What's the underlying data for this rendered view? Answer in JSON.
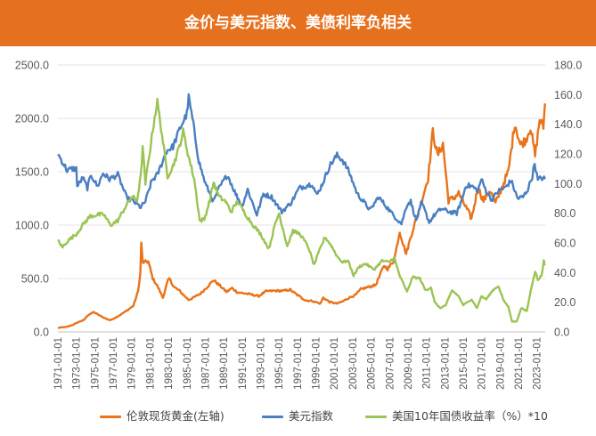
{
  "header": {
    "title": "金价与美元指数、美债利率负相关",
    "background": "#e5701e"
  },
  "chart_data": {
    "type": "line",
    "title": "金价与美元指数、美债利率负相关",
    "x_range": [
      1971.0,
      2023.9
    ],
    "x_tick_labels": [
      "1971-01-01",
      "1973-01-01",
      "1975-01-01",
      "1977-01-01",
      "1979-01-01",
      "1981-01-01",
      "1983-01-01",
      "1985-01-01",
      "1987-01-01",
      "1989-01-01",
      "1991-01-01",
      "1993-01-01",
      "1995-01-01",
      "1997-01-01",
      "1999-01-01",
      "2001-01-01",
      "2003-01-01",
      "2005-01-01",
      "2007-01-01",
      "2009-01-01",
      "2011-01-01",
      "2013-01-01",
      "2015-01-01",
      "2017-01-01",
      "2019-01-01",
      "2021-01-01",
      "2023-01-01"
    ],
    "left_axis": {
      "range": [
        0,
        2500
      ],
      "ticks": [
        0,
        500,
        1000,
        1500,
        2000,
        2500
      ],
      "tick_labels": [
        "0.0",
        "500.0",
        "1000.0",
        "1500.0",
        "2000.0",
        "2500.0"
      ]
    },
    "right_axis": {
      "range": [
        0,
        180
      ],
      "ticks": [
        0,
        20,
        40,
        60,
        80,
        100,
        120,
        140,
        160,
        180
      ],
      "tick_labels": [
        "0.0",
        "20.0",
        "40.0",
        "60.0",
        "80.0",
        "100.0",
        "120.0",
        "140.0",
        "160.0",
        "180.0"
      ]
    },
    "grid": true,
    "legend_position": "bottom",
    "series": [
      {
        "name": "伦敦现货黄金(左轴)",
        "axis": "left",
        "color": "#e8731a",
        "points": [
          [
            1971.0,
            38
          ],
          [
            1972.0,
            48
          ],
          [
            1972.6,
            65
          ],
          [
            1973.3,
            95
          ],
          [
            1973.8,
            110
          ],
          [
            1974.3,
            160
          ],
          [
            1974.9,
            185
          ],
          [
            1975.5,
            155
          ],
          [
            1976.3,
            120
          ],
          [
            1976.7,
            110
          ],
          [
            1977.5,
            145
          ],
          [
            1978.5,
            200
          ],
          [
            1979.2,
            245
          ],
          [
            1979.7,
            380
          ],
          [
            1979.95,
            550
          ],
          [
            1980.05,
            840
          ],
          [
            1980.2,
            650
          ],
          [
            1980.8,
            660
          ],
          [
            1981.3,
            500
          ],
          [
            1981.8,
            430
          ],
          [
            1982.4,
            320
          ],
          [
            1982.9,
            470
          ],
          [
            1983.1,
            500
          ],
          [
            1983.6,
            420
          ],
          [
            1984.2,
            385
          ],
          [
            1984.7,
            340
          ],
          [
            1985.2,
            300
          ],
          [
            1985.8,
            325
          ],
          [
            1986.5,
            360
          ],
          [
            1987.2,
            420
          ],
          [
            1987.9,
            485
          ],
          [
            1988.5,
            440
          ],
          [
            1989.3,
            375
          ],
          [
            1989.9,
            410
          ],
          [
            1990.5,
            370
          ],
          [
            1991.3,
            360
          ],
          [
            1992.0,
            350
          ],
          [
            1992.8,
            335
          ],
          [
            1993.6,
            380
          ],
          [
            1994.5,
            385
          ],
          [
            1995.5,
            385
          ],
          [
            1996.2,
            395
          ],
          [
            1997.0,
            345
          ],
          [
            1997.9,
            295
          ],
          [
            1998.6,
            290
          ],
          [
            1999.5,
            265
          ],
          [
            1999.8,
            320
          ],
          [
            2000.5,
            280
          ],
          [
            2001.3,
            265
          ],
          [
            2001.9,
            285
          ],
          [
            2002.6,
            320
          ],
          [
            2003.3,
            345
          ],
          [
            2003.9,
            400
          ],
          [
            2004.7,
            420
          ],
          [
            2005.5,
            440
          ],
          [
            2006.4,
            620
          ],
          [
            2006.8,
            590
          ],
          [
            2007.5,
            670
          ],
          [
            2008.1,
            940
          ],
          [
            2008.8,
            730
          ],
          [
            2009.5,
            950
          ],
          [
            2010.4,
            1200
          ],
          [
            2011.2,
            1450
          ],
          [
            2011.7,
            1880
          ],
          [
            2012.2,
            1650
          ],
          [
            2012.8,
            1760
          ],
          [
            2013.4,
            1230
          ],
          [
            2013.9,
            1250
          ],
          [
            2014.5,
            1300
          ],
          [
            2015.1,
            1200
          ],
          [
            2015.9,
            1060
          ],
          [
            2016.6,
            1350
          ],
          [
            2017.2,
            1230
          ],
          [
            2017.9,
            1330
          ],
          [
            2018.5,
            1200
          ],
          [
            2019.4,
            1400
          ],
          [
            2019.9,
            1500
          ],
          [
            2020.6,
            1960
          ],
          [
            2021.2,
            1750
          ],
          [
            2021.8,
            1800
          ],
          [
            2022.3,
            1920
          ],
          [
            2022.8,
            1650
          ],
          [
            2023.3,
            1990
          ],
          [
            2023.7,
            1920
          ],
          [
            2023.88,
            2140
          ]
        ]
      },
      {
        "name": "美元指数",
        "axis": "right",
        "color": "#4a7fc1",
        "points": [
          [
            1971.0,
            120
          ],
          [
            1972.0,
            109
          ],
          [
            1972.6,
            110
          ],
          [
            1973.0,
            110
          ],
          [
            1973.1,
            98
          ],
          [
            1973.7,
            104
          ],
          [
            1974.2,
            97
          ],
          [
            1974.6,
            106
          ],
          [
            1975.3,
            98
          ],
          [
            1975.9,
            107
          ],
          [
            1976.6,
            103
          ],
          [
            1977.5,
            106
          ],
          [
            1978.5,
            90
          ],
          [
            1979.2,
            88
          ],
          [
            1980.0,
            84
          ],
          [
            1980.5,
            88
          ],
          [
            1981.2,
            102
          ],
          [
            1981.8,
            106
          ],
          [
            1982.8,
            122
          ],
          [
            1983.5,
            125
          ],
          [
            1984.3,
            138
          ],
          [
            1985.0,
            147
          ],
          [
            1985.2,
            158
          ],
          [
            1985.7,
            140
          ],
          [
            1986.3,
            115
          ],
          [
            1987.0,
            100
          ],
          [
            1987.9,
            88
          ],
          [
            1988.5,
            97
          ],
          [
            1989.4,
            106
          ],
          [
            1990.3,
            93
          ],
          [
            1991.0,
            85
          ],
          [
            1991.6,
            96
          ],
          [
            1992.6,
            79
          ],
          [
            1993.3,
            93
          ],
          [
            1994.2,
            91
          ],
          [
            1995.3,
            81
          ],
          [
            1996.3,
            87
          ],
          [
            1997.2,
            97
          ],
          [
            1998.6,
            100
          ],
          [
            1999.1,
            92
          ],
          [
            1999.8,
            101
          ],
          [
            2000.5,
            112
          ],
          [
            2001.3,
            119
          ],
          [
            2001.9,
            116
          ],
          [
            2002.6,
            108
          ],
          [
            2003.5,
            93
          ],
          [
            2004.3,
            87
          ],
          [
            2004.9,
            82
          ],
          [
            2005.8,
            91
          ],
          [
            2006.6,
            85
          ],
          [
            2007.5,
            78
          ],
          [
            2008.3,
            73
          ],
          [
            2008.9,
            86
          ],
          [
            2009.3,
            88
          ],
          [
            2009.9,
            75
          ],
          [
            2010.5,
            87
          ],
          [
            2011.3,
            74
          ],
          [
            2011.9,
            79
          ],
          [
            2012.6,
            83
          ],
          [
            2013.5,
            81
          ],
          [
            2014.3,
            80
          ],
          [
            2014.9,
            90
          ],
          [
            2015.3,
            99
          ],
          [
            2016.0,
            98
          ],
          [
            2016.6,
            95
          ],
          [
            2016.95,
            103
          ],
          [
            2017.5,
            95
          ],
          [
            2018.1,
            89
          ],
          [
            2018.8,
            95
          ],
          [
            2019.5,
            97
          ],
          [
            2020.2,
            102
          ],
          [
            2020.9,
            90
          ],
          [
            2021.5,
            91
          ],
          [
            2022.0,
            96
          ],
          [
            2022.5,
            105
          ],
          [
            2022.75,
            114
          ],
          [
            2023.1,
            102
          ],
          [
            2023.45,
            104
          ],
          [
            2023.88,
            103
          ]
        ]
      },
      {
        "name": "美国10年国债收益率（%）*10",
        "axis": "right",
        "color": "#9cc355",
        "points": [
          [
            1971.0,
            62
          ],
          [
            1971.5,
            57
          ],
          [
            1972.0,
            61
          ],
          [
            1973.0,
            66
          ],
          [
            1973.8,
            73
          ],
          [
            1974.5,
            78
          ],
          [
            1975.3,
            79
          ],
          [
            1976.0,
            79
          ],
          [
            1976.7,
            72
          ],
          [
            1977.5,
            75
          ],
          [
            1978.3,
            84
          ],
          [
            1979.0,
            91
          ],
          [
            1979.6,
            89
          ],
          [
            1980.0,
            105
          ],
          [
            1980.2,
            125
          ],
          [
            1980.5,
            100
          ],
          [
            1981.0,
            123
          ],
          [
            1981.5,
            145
          ],
          [
            1981.8,
            155
          ],
          [
            1982.3,
            133
          ],
          [
            1982.9,
            105
          ],
          [
            1983.5,
            112
          ],
          [
            1984.1,
            123
          ],
          [
            1984.6,
            135
          ],
          [
            1985.2,
            118
          ],
          [
            1985.8,
            103
          ],
          [
            1986.4,
            75
          ],
          [
            1986.9,
            76
          ],
          [
            1987.5,
            89
          ],
          [
            1987.9,
            101
          ],
          [
            1988.5,
            91
          ],
          [
            1989.2,
            88
          ],
          [
            1989.8,
            81
          ],
          [
            1990.5,
            88
          ],
          [
            1991.3,
            80
          ],
          [
            1992.2,
            72
          ],
          [
            1993.0,
            66
          ],
          [
            1993.9,
            56
          ],
          [
            1994.6,
            73
          ],
          [
            1995.0,
            80
          ],
          [
            1995.9,
            58
          ],
          [
            1996.5,
            68
          ],
          [
            1997.3,
            66
          ],
          [
            1998.2,
            57
          ],
          [
            1998.8,
            45
          ],
          [
            1999.4,
            55
          ],
          [
            2000.0,
            64
          ],
          [
            2000.7,
            58
          ],
          [
            2001.3,
            51
          ],
          [
            2001.9,
            47
          ],
          [
            2002.5,
            48
          ],
          [
            2003.1,
            38
          ],
          [
            2003.7,
            44
          ],
          [
            2004.4,
            46
          ],
          [
            2005.3,
            42
          ],
          [
            2006.2,
            48
          ],
          [
            2006.9,
            47
          ],
          [
            2007.5,
            50
          ],
          [
            2008.1,
            38
          ],
          [
            2008.9,
            27
          ],
          [
            2009.5,
            37
          ],
          [
            2010.3,
            36
          ],
          [
            2010.9,
            28
          ],
          [
            2011.5,
            30
          ],
          [
            2011.9,
            20
          ],
          [
            2012.5,
            16
          ],
          [
            2013.1,
            18
          ],
          [
            2013.8,
            28
          ],
          [
            2014.5,
            24
          ],
          [
            2015.0,
            18
          ],
          [
            2015.9,
            22
          ],
          [
            2016.5,
            16
          ],
          [
            2016.95,
            24
          ],
          [
            2017.5,
            22
          ],
          [
            2018.2,
            28
          ],
          [
            2018.8,
            31
          ],
          [
            2019.4,
            21
          ],
          [
            2019.9,
            17
          ],
          [
            2020.3,
            7
          ],
          [
            2020.8,
            7
          ],
          [
            2021.3,
            16
          ],
          [
            2021.9,
            14
          ],
          [
            2022.4,
            30
          ],
          [
            2022.8,
            41
          ],
          [
            2023.1,
            35
          ],
          [
            2023.5,
            38
          ],
          [
            2023.75,
            48
          ],
          [
            2023.88,
            45
          ]
        ]
      }
    ]
  }
}
